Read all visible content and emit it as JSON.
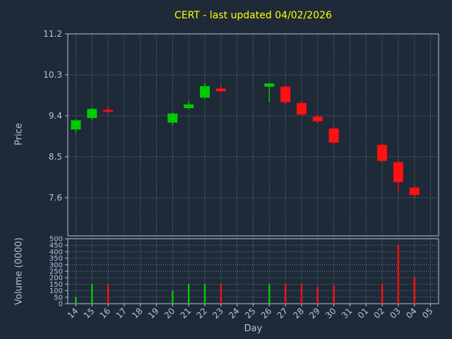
{
  "title": "CERT - last updated 04/02/2026",
  "axes": {
    "price_label": "Price",
    "volume_label": "Volume (0000)",
    "x_label": "Day"
  },
  "chart_data": {
    "type": "candlestick",
    "title": "CERT - last updated 04/02/2026",
    "xlabel": "Day",
    "ylabel_top": "Price",
    "ylabel_bottom": "Volume (0000)",
    "x_labels": [
      "14",
      "15",
      "16",
      "17",
      "18",
      "19",
      "20",
      "21",
      "22",
      "23",
      "24",
      "25",
      "26",
      "27",
      "28",
      "29",
      "30",
      "31",
      "01",
      "02",
      "03",
      "04",
      "05"
    ],
    "price_ticks": [
      11.2,
      10.3,
      9.4,
      8.5,
      7.6
    ],
    "price_range": [
      6.76,
      11.2
    ],
    "volume_ticks": [
      500,
      450,
      400,
      350,
      300,
      250,
      200,
      150,
      100,
      50,
      0
    ],
    "volume_range": [
      0,
      500
    ],
    "grid": true,
    "series": [
      {
        "day": "14",
        "open": 9.1,
        "high": 9.33,
        "low": 9.03,
        "close": 9.3,
        "volume": 50
      },
      {
        "day": "15",
        "open": 9.35,
        "high": 9.58,
        "low": 9.3,
        "close": 9.55,
        "volume": 150
      },
      {
        "day": "16",
        "open": 9.53,
        "high": 9.62,
        "low": 9.44,
        "close": 9.49,
        "volume": 150
      },
      {
        "day": "20",
        "open": 9.25,
        "high": 9.48,
        "low": 9.2,
        "close": 9.45,
        "volume": 100
      },
      {
        "day": "21",
        "open": 9.57,
        "high": 9.72,
        "low": 9.54,
        "close": 9.65,
        "volume": 150
      },
      {
        "day": "22",
        "open": 9.8,
        "high": 10.12,
        "low": 9.77,
        "close": 10.05,
        "volume": 150
      },
      {
        "day": "23",
        "open": 10.0,
        "high": 10.06,
        "low": 9.92,
        "close": 9.94,
        "volume": 150
      },
      {
        "day": "26",
        "open": 10.04,
        "high": 10.13,
        "low": 9.7,
        "close": 10.11,
        "volume": 150
      },
      {
        "day": "27",
        "open": 10.04,
        "high": 10.08,
        "low": 9.67,
        "close": 9.7,
        "volume": 150
      },
      {
        "day": "28",
        "open": 9.68,
        "high": 9.73,
        "low": 9.4,
        "close": 9.43,
        "volume": 150
      },
      {
        "day": "29",
        "open": 9.38,
        "high": 9.43,
        "low": 9.24,
        "close": 9.28,
        "volume": 130
      },
      {
        "day": "30",
        "open": 9.12,
        "high": 9.17,
        "low": 8.78,
        "close": 8.81,
        "volume": 140
      },
      {
        "day": "02",
        "open": 8.76,
        "high": 8.8,
        "low": 8.38,
        "close": 8.41,
        "volume": 150
      },
      {
        "day": "03",
        "open": 8.38,
        "high": 8.42,
        "low": 7.72,
        "close": 7.94,
        "volume": 450
      },
      {
        "day": "04",
        "open": 7.82,
        "high": 7.87,
        "low": 7.59,
        "close": 7.66,
        "volume": 200
      }
    ],
    "colors": {
      "up": "#00cc00",
      "down": "#ff1111",
      "title": "#ffff00",
      "text": "#b0c4de",
      "grid": "#7e8fa3",
      "spine": "#b0c4de",
      "background": "#1e2a38"
    },
    "legend": "none"
  }
}
